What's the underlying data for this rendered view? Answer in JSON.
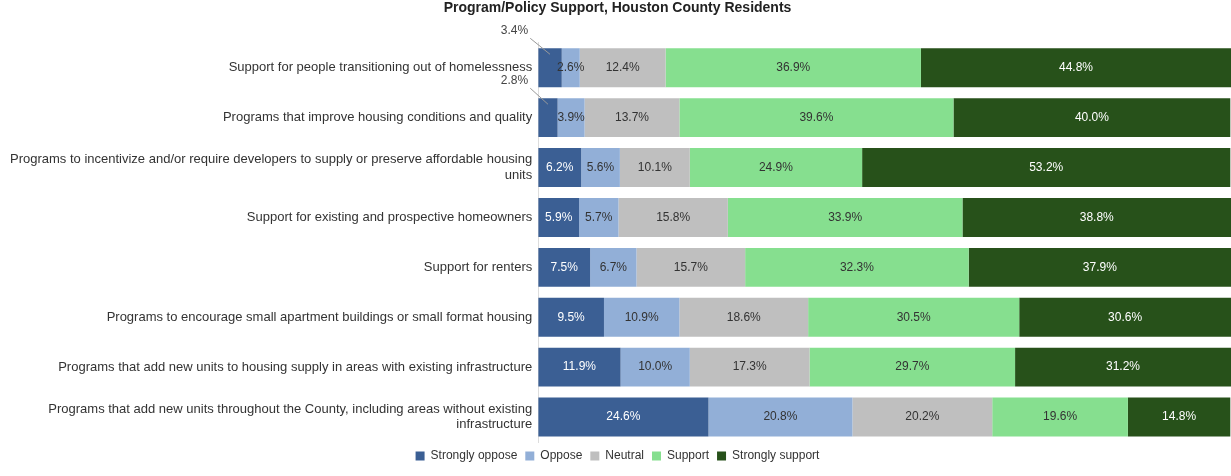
{
  "chart_data": {
    "type": "bar",
    "orientation": "horizontal",
    "stacked": true,
    "title": "Program/Policy Support, Houston County Residents",
    "categories": [
      "Support for people transitioning out of homelessness",
      "Programs that improve housing conditions and quality",
      "Programs to incentivize and/or require developers to supply or preserve affordable housing units",
      "Support for existing and prospective homeowners",
      "Support for renters",
      "Programs to encourage small apartment buildings or small format housing",
      "Programs that add new units to housing supply in areas with existing infrastructure",
      "Programs that add new units throughout the County, including areas without existing infrastructure"
    ],
    "series": [
      {
        "name": "Strongly oppose",
        "color": "#3b5f94",
        "values": [
          3.4,
          2.8,
          6.2,
          5.9,
          7.5,
          9.5,
          11.9,
          24.6
        ],
        "value_labels": [
          "3.4%",
          "2.8%",
          "6.2%",
          "5.9%",
          "7.5%",
          "9.5%",
          "11.9%",
          "24.6%"
        ]
      },
      {
        "name": "Oppose",
        "color": "#92afd7",
        "values": [
          2.6,
          3.9,
          5.6,
          5.7,
          6.7,
          10.9,
          10.0,
          20.8
        ],
        "value_labels": [
          "2.6%",
          "3.9%",
          "5.6%",
          "5.7%",
          "6.7%",
          "10.9%",
          "10.0%",
          "20.8%"
        ]
      },
      {
        "name": "Neutral",
        "color": "#bfbfbf",
        "values": [
          12.4,
          13.7,
          10.1,
          15.8,
          15.7,
          18.6,
          17.3,
          20.2
        ],
        "value_labels": [
          "12.4%",
          "13.7%",
          "10.1%",
          "15.8%",
          "15.7%",
          "18.6%",
          "17.3%",
          "20.2%"
        ]
      },
      {
        "name": "Support",
        "color": "#86df8f",
        "values": [
          36.9,
          39.6,
          24.9,
          33.9,
          32.3,
          30.5,
          29.7,
          19.6
        ],
        "value_labels": [
          "36.9%",
          "39.6%",
          "24.9%",
          "33.9%",
          "32.3%",
          "30.5%",
          "29.7%",
          "19.6%"
        ]
      },
      {
        "name": "Strongly support",
        "color": "#27511a",
        "values": [
          44.8,
          40.0,
          53.2,
          38.8,
          37.9,
          30.6,
          31.2,
          14.8
        ],
        "value_labels": [
          "44.8%",
          "40.0%",
          "53.2%",
          "38.8%",
          "37.9%",
          "30.6%",
          "31.2%",
          "14.8%"
        ]
      }
    ],
    "legend": "bottom",
    "tick_labels": "y",
    "grid": false
  }
}
